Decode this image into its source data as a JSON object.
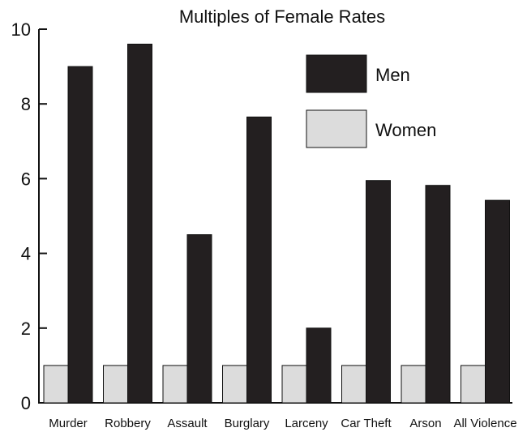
{
  "chart_data": {
    "type": "bar",
    "title": "Multiples of Female Rates",
    "xlabel": "",
    "ylabel": "",
    "ylim": [
      0,
      10
    ],
    "yticks": [
      0,
      2,
      4,
      6,
      8,
      10
    ],
    "grid": false,
    "legend_position": "top-right",
    "categories": [
      "Murder",
      "Robbery",
      "Assault",
      "Burglary",
      "Larceny",
      "Car Theft",
      "Arson",
      "All Violence"
    ],
    "series": [
      {
        "name": "Women",
        "color": "#dcdcdc",
        "values": [
          1,
          1,
          1,
          1,
          1,
          1,
          1,
          1
        ]
      },
      {
        "name": "Men",
        "color": "#231f20",
        "values": [
          9.0,
          9.6,
          4.5,
          7.65,
          2.0,
          5.95,
          5.82,
          5.42
        ]
      }
    ]
  }
}
